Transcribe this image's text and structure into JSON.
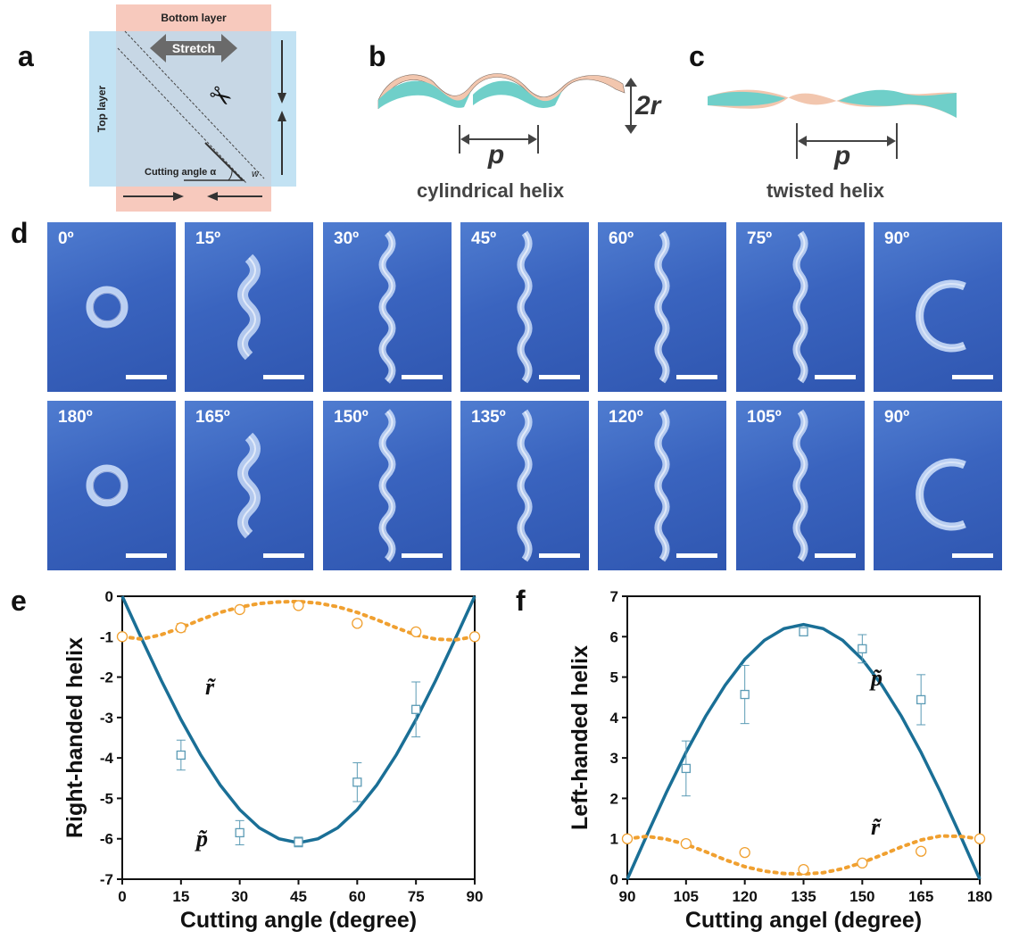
{
  "panel_labels": {
    "a": "a",
    "b": "b",
    "c": "c",
    "d": "d",
    "e": "e",
    "f": "f"
  },
  "panel_a": {
    "bottom_layer": "Bottom layer",
    "top_layer": "Top layer",
    "stretch": "Stretch",
    "cutting_angle": "Cutting angle α",
    "w": "w",
    "colors": {
      "bottom": "#f7c9bd",
      "top": "#bfe0f2"
    }
  },
  "panel_b": {
    "p": "p",
    "r": "2r",
    "caption": "cylindrical helix"
  },
  "panel_c": {
    "p": "p",
    "caption": "twisted helix"
  },
  "panel_d": {
    "row1": [
      "0º",
      "15º",
      "30º",
      "45º",
      "60º",
      "75º",
      "90º"
    ],
    "row2": [
      "180º",
      "165º",
      "150º",
      "135º",
      "120º",
      "105º",
      "90º"
    ]
  },
  "chart_data": [
    {
      "type": "scatter",
      "xlabel": "Cutting angle (degree)",
      "ylabel": "Right-handed helix",
      "xlim": [
        0,
        90
      ],
      "ylim": [
        -7,
        0
      ],
      "xticks": [
        0,
        15,
        30,
        45,
        60,
        75,
        90
      ],
      "yticks": [
        0,
        -1,
        -2,
        -3,
        -4,
        -5,
        -6,
        -7
      ],
      "ytick_labels": [
        "0",
        "-1",
        "-2",
        "-3",
        "-4",
        "-5",
        "-6",
        "-7"
      ],
      "series": [
        {
          "name": "p̃",
          "marker": "square",
          "color": "#5b9bb5",
          "x": [
            15,
            30,
            45,
            60,
            75
          ],
          "y": [
            -3.93,
            -5.85,
            -6.08,
            -4.6,
            -2.8
          ],
          "err": [
            0.37,
            0.3,
            0.12,
            0.48,
            0.68
          ]
        },
        {
          "name": "r̃",
          "marker": "circle",
          "color": "#f0a030",
          "x": [
            0,
            15,
            30,
            45,
            60,
            75,
            90
          ],
          "y": [
            -1.0,
            -0.78,
            -0.33,
            -0.23,
            -0.67,
            -0.88,
            -1.0
          ],
          "err": [
            0,
            0.1,
            0.05,
            0.05,
            0,
            0.06,
            0
          ]
        }
      ],
      "fit_p": {
        "color": "#1a6f96",
        "x": [
          0,
          5,
          10,
          15,
          20,
          25,
          30,
          35,
          40,
          45,
          50,
          55,
          60,
          65,
          70,
          75,
          80,
          85,
          90
        ],
        "y": [
          0,
          -1.06,
          -2.09,
          -3.05,
          -3.92,
          -4.67,
          -5.28,
          -5.73,
          -6.0,
          -6.1,
          -6.0,
          -5.73,
          -5.28,
          -4.67,
          -3.92,
          -3.05,
          -2.09,
          -1.06,
          0
        ]
      },
      "fit_r": {
        "color": "#f0a030",
        "x": [
          0,
          5,
          10,
          15,
          20,
          25,
          30,
          35,
          40,
          45,
          50,
          55,
          60,
          65,
          70,
          75,
          80,
          85,
          90
        ],
        "y": [
          -1.0,
          -1.06,
          -0.95,
          -0.78,
          -0.58,
          -0.4,
          -0.27,
          -0.18,
          -0.14,
          -0.13,
          -0.17,
          -0.26,
          -0.4,
          -0.58,
          -0.78,
          -0.96,
          -1.06,
          -1.08,
          -1.0
        ]
      }
    },
    {
      "type": "scatter",
      "xlabel": "Cutting angel (degree)",
      "ylabel": "Left-handed helix",
      "xlim": [
        90,
        180
      ],
      "ylim": [
        0,
        7
      ],
      "xticks": [
        90,
        105,
        120,
        135,
        150,
        165,
        180
      ],
      "yticks": [
        0,
        1,
        2,
        3,
        4,
        5,
        6,
        7
      ],
      "ytick_labels": [
        "0",
        "1",
        "2",
        "3",
        "4",
        "5",
        "6",
        "7"
      ],
      "series": [
        {
          "name": "p̃",
          "marker": "square",
          "color": "#5b9bb5",
          "x": [
            105,
            120,
            135,
            150,
            165
          ],
          "y": [
            2.74,
            4.57,
            6.12,
            5.7,
            4.44
          ],
          "err": [
            0.68,
            0.72,
            0.05,
            0.35,
            0.62
          ]
        },
        {
          "name": "r̃",
          "marker": "circle",
          "color": "#f0a030",
          "x": [
            90,
            105,
            120,
            135,
            150,
            165,
            180
          ],
          "y": [
            1.0,
            0.88,
            0.66,
            0.24,
            0.4,
            0.69,
            1.0
          ],
          "err": [
            0,
            0.05,
            0,
            0.07,
            0.06,
            0,
            0
          ]
        }
      ],
      "fit_p": {
        "color": "#1a6f96",
        "x": [
          90,
          95,
          100,
          105,
          110,
          115,
          120,
          125,
          130,
          135,
          140,
          145,
          150,
          155,
          160,
          165,
          170,
          175,
          180
        ],
        "y": [
          0,
          1.09,
          2.15,
          3.14,
          4.03,
          4.8,
          5.44,
          5.91,
          6.2,
          6.3,
          6.2,
          5.91,
          5.44,
          4.8,
          4.03,
          3.14,
          2.15,
          1.09,
          0
        ]
      },
      "fit_r": {
        "color": "#f0a030",
        "x": [
          90,
          95,
          100,
          105,
          110,
          115,
          120,
          125,
          130,
          135,
          140,
          145,
          150,
          155,
          160,
          165,
          170,
          175,
          180
        ],
        "y": [
          1.0,
          1.06,
          0.99,
          0.86,
          0.68,
          0.48,
          0.31,
          0.2,
          0.14,
          0.13,
          0.16,
          0.26,
          0.41,
          0.6,
          0.8,
          0.97,
          1.07,
          1.06,
          1.0
        ]
      }
    }
  ],
  "annotations": {
    "e_r": "r̃",
    "e_p": "p̃",
    "f_p": "p̃",
    "f_r": "r̃"
  }
}
